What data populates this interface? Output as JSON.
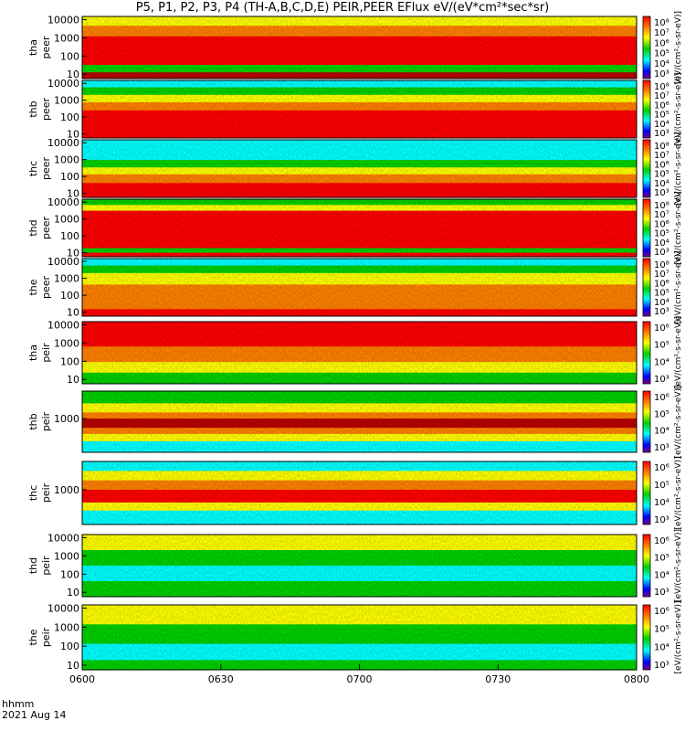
{
  "title": "P5, P1, P2, P3, P4 (TH-A,B,C,D,E) PEIR,PEER EFlux eV/(eV*cm²*sec*sr)",
  "footer": {
    "time_unit": "hhmm",
    "date": "2021 Aug 14"
  },
  "colors": {
    "red": "#ff0000",
    "dark_red": "#b80000",
    "orange": "#ff8000",
    "yellow": "#ffff00",
    "green": "#00d000",
    "cyan": "#00ffff",
    "blue": "#0000ff",
    "purple": "#800080",
    "black": "#000000"
  },
  "chart_data": {
    "type": "heatmap",
    "x_ticks": [
      "0600",
      "0630",
      "0700",
      "0730",
      "0800"
    ],
    "colorbar_label": "[eV/(cm²-s-sr-eV)]",
    "panels": [
      {
        "probe": "tha",
        "species": "peer",
        "ylabel": [
          "tha",
          "peer"
        ],
        "y_ticks": [
          "10000",
          "1000",
          "100",
          "10"
        ],
        "cb_ticks": [
          "10⁸",
          "10⁷",
          "10⁶",
          "10⁵",
          "10⁴",
          "10³"
        ],
        "style": "tha_peer"
      },
      {
        "probe": "thb",
        "species": "peer",
        "ylabel": [
          "thb",
          "peer"
        ],
        "y_ticks": [
          "10000",
          "1000",
          "100",
          "10"
        ],
        "cb_ticks": [
          "10⁸",
          "10⁷",
          "10⁶",
          "10⁵",
          "10⁴",
          "10³"
        ],
        "style": "thb_peer"
      },
      {
        "probe": "thc",
        "species": "peer",
        "ylabel": [
          "thc",
          "peer"
        ],
        "y_ticks": [
          "10000",
          "1000",
          "100",
          "10"
        ],
        "cb_ticks": [
          "10⁸",
          "10⁷",
          "10⁶",
          "10⁵",
          "10⁴",
          "10³"
        ],
        "style": "thc_peer"
      },
      {
        "probe": "thd",
        "species": "peer",
        "ylabel": [
          "thd",
          "peer"
        ],
        "y_ticks": [
          "10000",
          "1000",
          "100",
          "10"
        ],
        "cb_ticks": [
          "10⁸",
          "10⁷",
          "10⁶",
          "10⁵",
          "10⁴",
          "10³"
        ],
        "style": "thd_peer"
      },
      {
        "probe": "the",
        "species": "peer",
        "ylabel": [
          "the",
          "peer"
        ],
        "y_ticks": [
          "10000",
          "1000",
          "100",
          "10"
        ],
        "cb_ticks": [
          "10⁸",
          "10⁷",
          "10⁶",
          "10⁵",
          "10⁴",
          "10³"
        ],
        "style": "the_peer"
      },
      {
        "probe": "tha",
        "species": "peir",
        "ylabel": [
          "tha",
          "peir"
        ],
        "y_ticks": [
          "10000",
          "1000",
          "100",
          "10"
        ],
        "cb_ticks": [
          "10⁶",
          "10⁵",
          "10⁴",
          "10³"
        ],
        "style": "tha_peir"
      },
      {
        "probe": "thb",
        "species": "peir",
        "ylabel": [
          "thb",
          "peir"
        ],
        "y_ticks": [
          "1000"
        ],
        "cb_ticks": [
          "10⁶",
          "10⁵",
          "10⁴",
          "10³"
        ],
        "style": "thb_peir"
      },
      {
        "probe": "thc",
        "species": "peir",
        "ylabel": [
          "thc",
          "peir"
        ],
        "y_ticks": [
          "1000"
        ],
        "cb_ticks": [
          "10⁶",
          "10⁵",
          "10⁴",
          "10³"
        ],
        "style": "thc_peir"
      },
      {
        "probe": "thd",
        "species": "peir",
        "ylabel": [
          "thd",
          "peir"
        ],
        "y_ticks": [
          "10000",
          "1000",
          "100",
          "10"
        ],
        "cb_ticks": [
          "10⁶",
          "10⁵",
          "10⁴",
          "10³"
        ],
        "style": "thd_peir"
      },
      {
        "probe": "the",
        "species": "peir",
        "ylabel": [
          "the",
          "peir"
        ],
        "y_ticks": [
          "10000",
          "1000",
          "100",
          "10"
        ],
        "cb_ticks": [
          "10⁶",
          "10⁵",
          "10⁴",
          "10³"
        ],
        "style": "the_peir"
      }
    ]
  }
}
